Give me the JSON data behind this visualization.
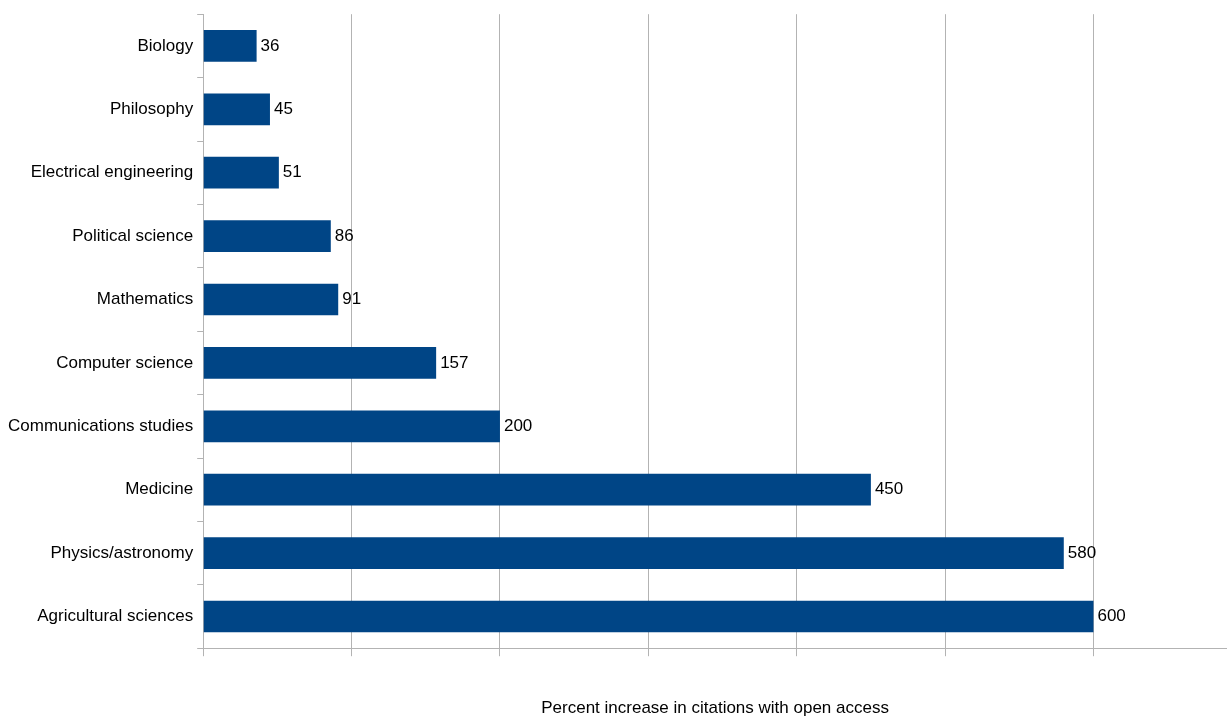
{
  "chart_data": {
    "type": "bar",
    "orientation": "horizontal",
    "xlabel": "Percent increase in citations with open access",
    "categories": [
      "Biology",
      "Philosophy",
      "Electrical engineering",
      "Political science",
      "Mathematics",
      "Computer science",
      "Communications studies",
      "Medicine",
      "Physics/astronomy",
      "Agricultural sciences"
    ],
    "values": [
      36,
      45,
      51,
      86,
      91,
      157,
      200,
      450,
      580,
      600
    ],
    "color": "#004586",
    "xlim": [
      0,
      690
    ],
    "xticks": [
      {
        "value": 0,
        "label": null
      },
      {
        "value": 100,
        "label": null
      },
      {
        "value": 200,
        "label": null
      },
      {
        "value": 300,
        "label": null
      },
      {
        "value": 400,
        "label": null
      },
      {
        "value": 500,
        "label": null
      },
      {
        "value": 600,
        "label": null
      }
    ],
    "grid": "x",
    "legend": false,
    "data_labels": true
  }
}
